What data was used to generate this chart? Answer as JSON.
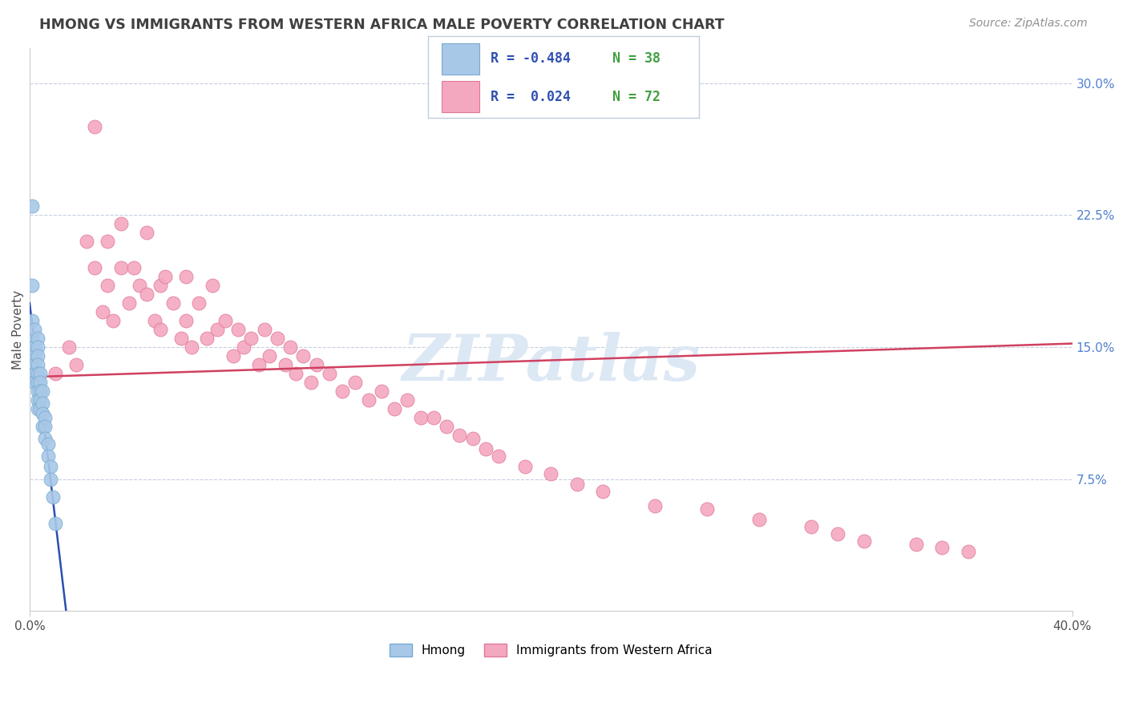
{
  "title": "HMONG VS IMMIGRANTS FROM WESTERN AFRICA MALE POVERTY CORRELATION CHART",
  "source": "Source: ZipAtlas.com",
  "ylabel": "Male Poverty",
  "right_yticks": [
    "30.0%",
    "22.5%",
    "15.0%",
    "7.5%"
  ],
  "right_ytick_vals": [
    0.3,
    0.225,
    0.15,
    0.075
  ],
  "xlim": [
    0.0,
    0.4
  ],
  "ylim": [
    0.0,
    0.32
  ],
  "hmong_color": "#a8c8e8",
  "hmong_edge_color": "#7aaad0",
  "western_africa_color": "#f4a8c0",
  "western_africa_edge_color": "#e07898",
  "hmong_line_color": "#2850b0",
  "western_africa_line_color": "#d04060",
  "watermark": "ZIPatlas",
  "watermark_color": "#dce8f4",
  "legend_R_color": "#3050b0",
  "legend_N_color": "#40a040",
  "hmong_legend_color": "#a8c8e8",
  "wa_legend_color": "#f4a8c0",
  "hmong_x": [
    0.001,
    0.001,
    0.001,
    0.001,
    0.001,
    0.002,
    0.002,
    0.002,
    0.002,
    0.002,
    0.002,
    0.003,
    0.003,
    0.003,
    0.003,
    0.003,
    0.003,
    0.003,
    0.003,
    0.003,
    0.004,
    0.004,
    0.004,
    0.004,
    0.004,
    0.005,
    0.005,
    0.005,
    0.005,
    0.006,
    0.006,
    0.006,
    0.007,
    0.007,
    0.008,
    0.008,
    0.009,
    0.01
  ],
  "hmong_y": [
    0.23,
    0.185,
    0.165,
    0.155,
    0.145,
    0.16,
    0.15,
    0.145,
    0.14,
    0.135,
    0.13,
    0.155,
    0.15,
    0.145,
    0.14,
    0.135,
    0.13,
    0.125,
    0.12,
    0.115,
    0.135,
    0.13,
    0.125,
    0.12,
    0.115,
    0.125,
    0.118,
    0.112,
    0.105,
    0.11,
    0.105,
    0.098,
    0.095,
    0.088,
    0.082,
    0.075,
    0.065,
    0.05
  ],
  "wa_x": [
    0.01,
    0.015,
    0.018,
    0.022,
    0.025,
    0.025,
    0.028,
    0.03,
    0.03,
    0.032,
    0.035,
    0.035,
    0.038,
    0.04,
    0.042,
    0.045,
    0.045,
    0.048,
    0.05,
    0.05,
    0.052,
    0.055,
    0.058,
    0.06,
    0.06,
    0.062,
    0.065,
    0.068,
    0.07,
    0.072,
    0.075,
    0.078,
    0.08,
    0.082,
    0.085,
    0.088,
    0.09,
    0.092,
    0.095,
    0.098,
    0.1,
    0.102,
    0.105,
    0.108,
    0.11,
    0.115,
    0.12,
    0.125,
    0.13,
    0.135,
    0.14,
    0.145,
    0.15,
    0.155,
    0.16,
    0.165,
    0.17,
    0.175,
    0.18,
    0.19,
    0.2,
    0.21,
    0.22,
    0.24,
    0.26,
    0.28,
    0.3,
    0.31,
    0.32,
    0.34,
    0.35,
    0.36
  ],
  "wa_y": [
    0.135,
    0.15,
    0.14,
    0.21,
    0.275,
    0.195,
    0.17,
    0.21,
    0.185,
    0.165,
    0.22,
    0.195,
    0.175,
    0.195,
    0.185,
    0.215,
    0.18,
    0.165,
    0.185,
    0.16,
    0.19,
    0.175,
    0.155,
    0.19,
    0.165,
    0.15,
    0.175,
    0.155,
    0.185,
    0.16,
    0.165,
    0.145,
    0.16,
    0.15,
    0.155,
    0.14,
    0.16,
    0.145,
    0.155,
    0.14,
    0.15,
    0.135,
    0.145,
    0.13,
    0.14,
    0.135,
    0.125,
    0.13,
    0.12,
    0.125,
    0.115,
    0.12,
    0.11,
    0.11,
    0.105,
    0.1,
    0.098,
    0.092,
    0.088,
    0.082,
    0.078,
    0.072,
    0.068,
    0.06,
    0.058,
    0.052,
    0.048,
    0.044,
    0.04,
    0.038,
    0.036,
    0.034
  ],
  "wa_line_x0": 0.0,
  "wa_line_y0": 0.133,
  "wa_line_x1": 0.4,
  "wa_line_y1": 0.152,
  "hmong_line_x0": 0.0,
  "hmong_line_y0": 0.175,
  "hmong_line_x1": 0.014,
  "hmong_line_y1": 0.0
}
